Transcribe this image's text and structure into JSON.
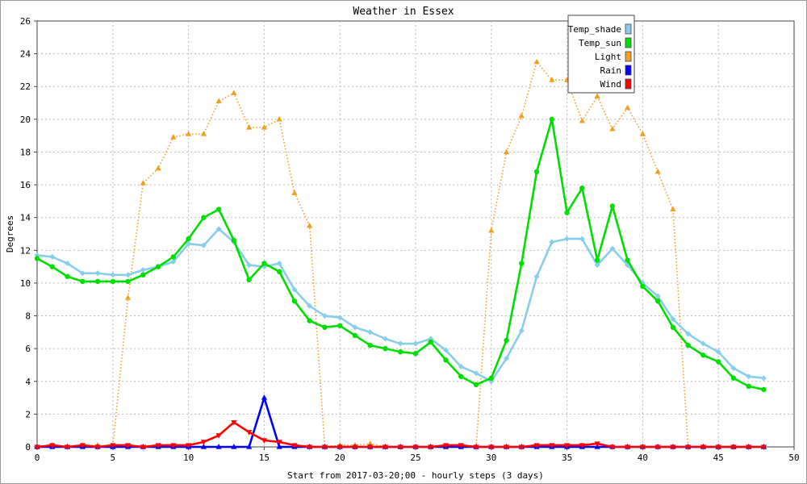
{
  "chart_data": {
    "type": "line",
    "title": "Weather in Essex",
    "xlabel": "Start from 2017-03-20;00 - hourly steps (3 days)",
    "ylabel": "Degrees",
    "xlim": [
      0,
      50
    ],
    "ylim": [
      0,
      26
    ],
    "x_ticks": [
      0,
      5,
      10,
      15,
      20,
      25,
      30,
      35,
      40,
      45,
      50
    ],
    "y_ticks": [
      0,
      2,
      4,
      6,
      8,
      10,
      12,
      14,
      16,
      18,
      20,
      22,
      24,
      26
    ],
    "grid": true,
    "legend_position": "top-right",
    "x": [
      0,
      1,
      2,
      3,
      4,
      5,
      6,
      7,
      8,
      9,
      10,
      11,
      12,
      13,
      14,
      15,
      16,
      17,
      18,
      19,
      20,
      21,
      22,
      23,
      24,
      25,
      26,
      27,
      28,
      29,
      30,
      31,
      32,
      33,
      34,
      35,
      36,
      37,
      38,
      39,
      40,
      41,
      42,
      43,
      44,
      45,
      46,
      47,
      48
    ],
    "series": [
      {
        "name": "Temp_shade",
        "color": "#87ceeb",
        "style": "solid",
        "marker": "diamond",
        "values": [
          11.7,
          11.6,
          11.2,
          10.6,
          10.6,
          10.5,
          10.5,
          10.8,
          11.0,
          11.3,
          12.4,
          12.3,
          13.3,
          12.5,
          11.1,
          11.0,
          11.2,
          9.6,
          8.6,
          8.0,
          7.9,
          7.3,
          7.0,
          6.6,
          6.3,
          6.3,
          6.6,
          5.9,
          4.9,
          4.5,
          4.0,
          5.4,
          7.1,
          10.4,
          12.5,
          12.7,
          12.7,
          11.1,
          12.1,
          11.1,
          10.0,
          9.2,
          7.8,
          6.9,
          6.3,
          5.8,
          4.8,
          4.3,
          4.2
        ]
      },
      {
        "name": "Temp_sun",
        "color": "#00dd00",
        "style": "solid",
        "marker": "circle",
        "values": [
          11.5,
          11.0,
          10.4,
          10.1,
          10.1,
          10.1,
          10.1,
          10.5,
          11.0,
          11.6,
          12.7,
          14.0,
          14.5,
          12.6,
          10.2,
          11.2,
          10.7,
          8.9,
          7.7,
          7.3,
          7.4,
          6.8,
          6.2,
          6.0,
          5.8,
          5.7,
          6.4,
          5.3,
          4.3,
          3.8,
          4.2,
          6.5,
          11.2,
          16.8,
          20.0,
          14.3,
          15.8,
          11.4,
          14.7,
          11.4,
          9.8,
          8.9,
          7.3,
          6.2,
          5.6,
          5.2,
          4.2,
          3.7,
          3.5
        ]
      },
      {
        "name": "Light",
        "color": "#f0a020",
        "style": "dotted",
        "marker": "triangle-up",
        "values": [
          0.0,
          0.1,
          0.0,
          0.1,
          0.1,
          0.0,
          9.1,
          16.1,
          17.0,
          18.9,
          19.1,
          19.1,
          21.1,
          21.6,
          19.5,
          19.5,
          20.0,
          15.5,
          13.5,
          0.0,
          0.1,
          0.1,
          0.2,
          0.0,
          0.0,
          0.0,
          0.0,
          0.0,
          0.0,
          0.0,
          13.2,
          18.0,
          20.2,
          23.5,
          22.4,
          22.4,
          19.9,
          21.4,
          19.4,
          20.7,
          19.1,
          16.8,
          14.5,
          0.0,
          0.0,
          0.0,
          0.0,
          0.0,
          0.0
        ]
      },
      {
        "name": "Rain",
        "color": "#0000ff",
        "style": "solid",
        "marker": "triangle-up",
        "values": [
          0,
          0,
          0,
          0,
          0,
          0,
          0,
          0,
          0,
          0,
          0,
          0,
          0,
          0,
          0,
          3.0,
          0,
          0,
          0,
          0,
          0,
          0,
          0,
          0,
          0,
          0,
          0,
          0,
          0,
          0,
          0,
          0,
          0,
          0,
          0,
          0,
          0,
          0,
          0,
          0,
          0,
          0,
          0,
          0,
          0,
          0,
          0,
          0,
          0
        ]
      },
      {
        "name": "Wind",
        "color": "#ff0000",
        "style": "solid",
        "marker": "triangle-down",
        "values": [
          0.0,
          0.1,
          0.0,
          0.1,
          0.0,
          0.1,
          0.1,
          0.0,
          0.1,
          0.1,
          0.1,
          0.3,
          0.7,
          1.5,
          0.9,
          0.4,
          0.3,
          0.1,
          0.0,
          0.0,
          0.0,
          0.0,
          0.0,
          0.0,
          0.0,
          0.0,
          0.0,
          0.1,
          0.1,
          0.0,
          0.0,
          0.0,
          0.0,
          0.1,
          0.1,
          0.1,
          0.1,
          0.2,
          0.0,
          0.0,
          0.0,
          0.0,
          0.0,
          0.0,
          0.0,
          0.0,
          0.0,
          0.0,
          0.0
        ]
      }
    ]
  }
}
